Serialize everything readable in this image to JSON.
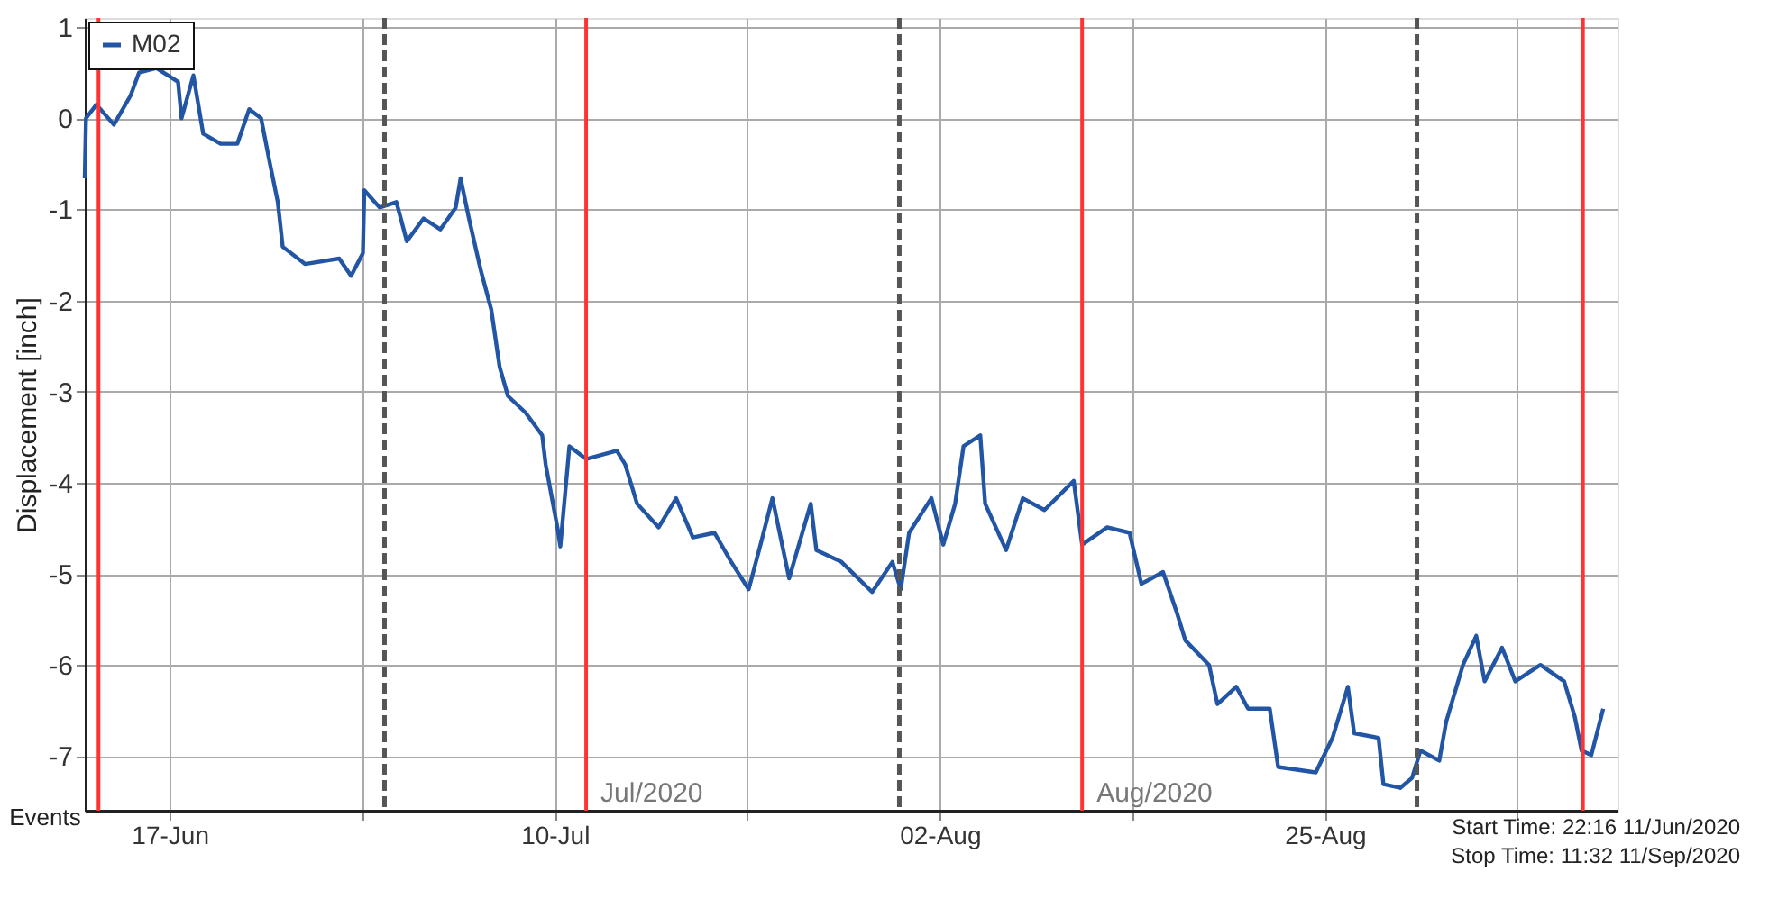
{
  "chart_data": {
    "type": "line",
    "ylabel": "Displacement [inch]",
    "xlim": [
      "2020-06-11T22:16",
      "2020-09-11T11:32"
    ],
    "xticks": [
      {
        "value": "2020-06-17",
        "label": "17-Jun"
      },
      {
        "value": "2020-06-28T12:00",
        "label": null
      },
      {
        "value": "2020-07-10",
        "label": "10-Jul"
      },
      {
        "value": "2020-07-21T12:00",
        "label": null
      },
      {
        "value": "2020-08-02",
        "label": "02-Aug"
      },
      {
        "value": "2020-08-13T12:00",
        "label": null
      },
      {
        "value": "2020-08-25",
        "label": "25-Aug"
      },
      {
        "value": "2020-09-05T12:00",
        "label": null
      }
    ],
    "ylim": [
      -7.6,
      1.1
    ],
    "yticks": [
      1,
      0,
      -1,
      -2,
      -3,
      -4,
      -5,
      -6,
      -7
    ],
    "grid": true,
    "legend": "top left",
    "series": [
      {
        "name": "M02",
        "color": "#2255a4",
        "x": [
          "2020-06-11T22:16",
          "2020-06-12T00:00",
          "2020-06-12T15:00",
          "2020-06-13T16:00",
          "2020-06-14T16:00",
          "2020-06-15T04:00",
          "2020-06-16T05:00",
          "2020-06-17T12:00",
          "2020-06-17T17:00",
          "2020-06-18T10:00",
          "2020-06-19T00:00",
          "2020-06-20T01:00",
          "2020-06-21T01:00",
          "2020-06-21T18:00",
          "2020-06-22T11:00",
          "2020-06-22T23:00",
          "2020-06-23T11:00",
          "2020-06-23T18:00",
          "2020-06-25T02:00",
          "2020-06-27T03:00",
          "2020-06-27T20:00",
          "2020-06-28T13:00",
          "2020-06-28T15:00",
          "2020-06-29T13:00",
          "2020-06-30T13:00",
          "2020-07-01T04:00",
          "2020-07-02T04:00",
          "2020-07-03T04:00",
          "2020-07-04T02:00",
          "2020-07-04T09:00",
          "2020-07-04T21:00",
          "2020-07-05T14:00",
          "2020-07-06T05:00",
          "2020-07-06T17:00",
          "2020-07-07T05:00",
          "2020-07-08T06:00",
          "2020-07-09T06:00",
          "2020-07-09T11:00",
          "2020-07-10T04:00",
          "2020-07-10T08:00",
          "2020-07-10T21:00",
          "2020-07-11T21:00",
          "2020-07-13T17:00",
          "2020-07-14T05:00",
          "2020-07-14T22:00",
          "2020-07-16T05:00",
          "2020-07-17T06:00",
          "2020-07-18T06:00",
          "2020-07-19T13:00",
          "2020-07-20T13:00",
          "2020-07-21T14:00",
          "2020-07-22T07:00",
          "2020-07-23T00:00",
          "2020-07-24T00:00",
          "2020-07-25T07:00",
          "2020-07-25T15:00",
          "2020-07-27T03:00",
          "2020-07-28T23:00",
          "2020-07-30T04:00",
          "2020-07-30T16:00",
          "2020-07-31T04:00",
          "2020-08-01T12:00",
          "2020-08-02T05:00",
          "2020-08-02T22:00",
          "2020-08-03T10:00",
          "2020-08-04T10:00",
          "2020-08-04T17:00",
          "2020-08-05T23:00",
          "2020-08-06T23:00",
          "2020-08-08T06:00",
          "2020-08-10T00:00",
          "2020-08-10T12:00",
          "2020-08-12T00:00",
          "2020-08-13T08:00",
          "2020-08-14T01:00",
          "2020-08-15T08:00",
          "2020-08-16T04:00",
          "2020-08-16T16:00",
          "2020-08-18T02:00",
          "2020-08-18T14:00",
          "2020-08-19T17:00",
          "2020-08-20T10:00",
          "2020-08-21T17:00",
          "2020-08-22T05:00",
          "2020-08-24T11:00",
          "2020-08-25T11:00",
          "2020-08-26T09:00",
          "2020-08-26T18:00",
          "2020-08-28T05:00",
          "2020-08-28T12:00",
          "2020-08-29T12:00",
          "2020-08-30T05:00",
          "2020-08-30T17:00",
          "2020-08-31T20:00",
          "2020-09-01T06:00",
          "2020-09-02T06:00",
          "2020-09-03T01:00",
          "2020-09-03T13:00",
          "2020-09-04T14:00",
          "2020-09-05T09:00",
          "2020-09-06T21:00",
          "2020-09-08T07:00",
          "2020-09-08T22:00",
          "2020-09-09T08:00",
          "2020-09-09T22:00",
          "2020-09-10T15:00"
        ],
        "values": [
          -0.66,
          0,
          0.15,
          -0.07,
          0.25,
          0.5,
          0.55,
          0.4,
          0,
          0.47,
          -0.17,
          -0.28,
          -0.28,
          0.1,
          0,
          -0.47,
          -0.92,
          -1.41,
          -1.6,
          -1.54,
          -1.73,
          -1.48,
          -0.79,
          -0.98,
          -0.92,
          -1.35,
          -1.1,
          -1.22,
          -0.98,
          -0.66,
          -1.1,
          -1.67,
          -2.1,
          -2.73,
          -3.05,
          -3.23,
          -3.48,
          -3.8,
          -4.5,
          -4.7,
          -3.6,
          -3.74,
          -3.65,
          -3.8,
          -4.23,
          -4.49,
          -4.17,
          -4.6,
          -4.55,
          -4.87,
          -5.17,
          -4.68,
          -4.17,
          -5.05,
          -4.23,
          -4.74,
          -4.87,
          -5.2,
          -4.87,
          -5.17,
          -4.55,
          -4.17,
          -4.68,
          -4.23,
          -3.6,
          -3.48,
          -4.23,
          -4.74,
          -4.17,
          -4.3,
          -3.98,
          -4.68,
          -4.49,
          -4.55,
          -5.11,
          -4.98,
          -5.43,
          -5.73,
          -6.0,
          -6.43,
          -6.24,
          -6.48,
          -6.48,
          -7.12,
          -7.18,
          -6.8,
          -6.24,
          -6.75,
          -6.8,
          -7.31,
          -7.35,
          -7.24,
          -6.94,
          -7.05,
          -6.62,
          -6.0,
          -5.68,
          -6.18,
          -5.81,
          -6.18,
          -6.0,
          -6.18,
          -6.56,
          -6.94,
          -6.99,
          -6.48
        ]
      }
    ],
    "ref_lines": [
      {
        "axis": "x",
        "value": "2020-06-12T18:00",
        "color": "#ff3333",
        "line_style": "solid"
      },
      {
        "axis": "x",
        "value": "2020-06-29T20:00",
        "color": "#555555",
        "line_style": "dashed"
      },
      {
        "axis": "x",
        "value": "2020-07-11T21:00",
        "label": "Jul/2020",
        "color": "#ff3333",
        "line_style": "solid"
      },
      {
        "axis": "x",
        "value": "2020-07-30T14:00",
        "color": "#555555",
        "line_style": "dashed"
      },
      {
        "axis": "x",
        "value": "2020-08-10T12:00",
        "label": "Aug/2020",
        "color": "#ff3333",
        "line_style": "solid"
      },
      {
        "axis": "x",
        "value": "2020-08-30T12:00",
        "color": "#555555",
        "line_style": "dashed"
      },
      {
        "axis": "x",
        "value": "2020-09-09T10:00",
        "color": "#ff3333",
        "line_style": "solid"
      }
    ],
    "annotations": [
      "Events",
      "Start Time: 22:16 11/Jun/2020",
      "Stop Time: 11:32 11/Sep/2020"
    ]
  }
}
